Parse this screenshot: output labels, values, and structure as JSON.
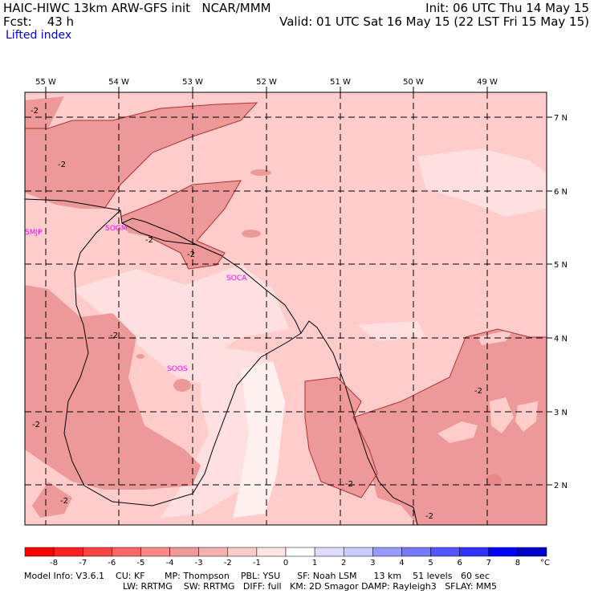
{
  "header": {
    "model": "HAIC-HIWC 13km ARW-GFS init",
    "center": "NCAR/MMM",
    "fcst": "Fcst:    43 h",
    "init": "Init: 06 UTC Thu 14 May 15",
    "valid": "Valid: 01 UTC Sat 16 May 15 (22 LST Fri 15 May 15)",
    "field": "Lifted index"
  },
  "map": {
    "lon_labels": [
      "55 W",
      "54 W",
      "53 W",
      "52 W",
      "51 W",
      "50 W",
      "49 W"
    ],
    "lat_labels": [
      "7 N",
      "6 N",
      "5 N",
      "4 N",
      "3 N",
      "2 N"
    ],
    "stations": [
      "SMJP",
      "SOGM",
      "SOCA",
      "SOOS"
    ],
    "contour_label": "-2",
    "colors": {
      "background_fill": "#ffcccc",
      "fill_minus2": "#ee9999",
      "fill_light": "#ffe0e0",
      "fill_zero": "#fff0f0",
      "station": "#ff00ff",
      "grid": "#000000"
    }
  },
  "colorbar": {
    "ticks": [
      "-8",
      "-7",
      "-6",
      "-5",
      "-4",
      "-3",
      "-2",
      "-1",
      "0",
      "1",
      "2",
      "3",
      "4",
      "5",
      "6",
      "7",
      "8"
    ],
    "unit": "°C",
    "colors": [
      "#ff0000",
      "#ff2222",
      "#ff4444",
      "#ff6666",
      "#ff8888",
      "#f09999",
      "#f5b0b0",
      "#fbcccc",
      "#ffe5e5",
      "#ffffff",
      "#ddddff",
      "#ccccff",
      "#9999ff",
      "#7777ff",
      "#5555ff",
      "#3333ff",
      "#0000ff",
      "#0000cc"
    ]
  },
  "footer": {
    "line1": "Model Info: V3.6.1    CU: KF       MP: Thompson    PBL: YSU      SF: Noah LSM      13 km    51 levels   60 sec",
    "line2": "LW: RRTMG    SW: RRTMG   DIFF: full   KM: 2D Smagor DAMP: Rayleigh3   SFLAY: MM5"
  }
}
